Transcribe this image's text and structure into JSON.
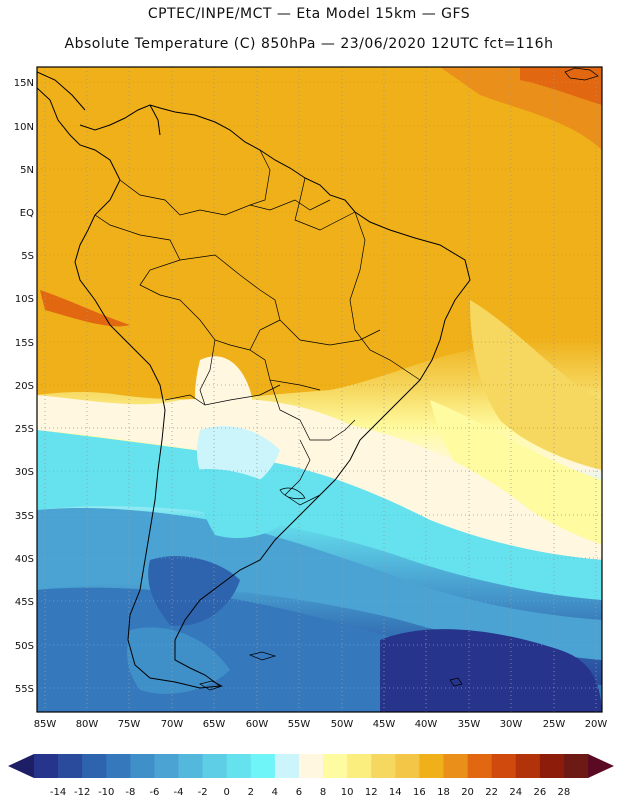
{
  "header": {
    "line1": "CPTEC/INPE/MCT —  Eta Model 15km — GFS",
    "line2": "Absolute Temperature (C) 850hPa — 23/06/2020 12UTC fct=116h"
  },
  "map": {
    "region": "South America",
    "lat_labels": [
      "15N",
      "10N",
      "5N",
      "EQ",
      "5S",
      "10S",
      "15S",
      "20S",
      "25S",
      "30S",
      "35S",
      "40S",
      "45S",
      "50S",
      "55S"
    ],
    "lon_labels": [
      "85W",
      "80W",
      "75W",
      "70W",
      "65W",
      "60W",
      "55W",
      "50W",
      "45W",
      "40W",
      "35W",
      "30W",
      "25W",
      "20W"
    ]
  },
  "colorbar": {
    "ticks": [
      "-14",
      "-12",
      "-10",
      "-8",
      "-6",
      "-4",
      "-2",
      "0",
      "2",
      "4",
      "6",
      "8",
      "10",
      "12",
      "14",
      "16",
      "18",
      "20",
      "22",
      "24",
      "26",
      "28"
    ],
    "colors": [
      "#26348c",
      "#2a4a9c",
      "#2e63ad",
      "#3578bc",
      "#3f8fc8",
      "#4aa3d2",
      "#54b8dc",
      "#5ecde6",
      "#66e2ee",
      "#6ff5f8",
      "#ccf4fb",
      "#fff7e0",
      "#fffba0",
      "#fbee7e",
      "#f6d860",
      "#f3c648",
      "#efb01a",
      "#ea8f1a",
      "#e16710",
      "#cf4a0c",
      "#b2320a",
      "#8e1c0a",
      "#6e1a14"
    ],
    "arrow_left_color": "#1e1e66",
    "arrow_right_color": "#5a0a22"
  }
}
